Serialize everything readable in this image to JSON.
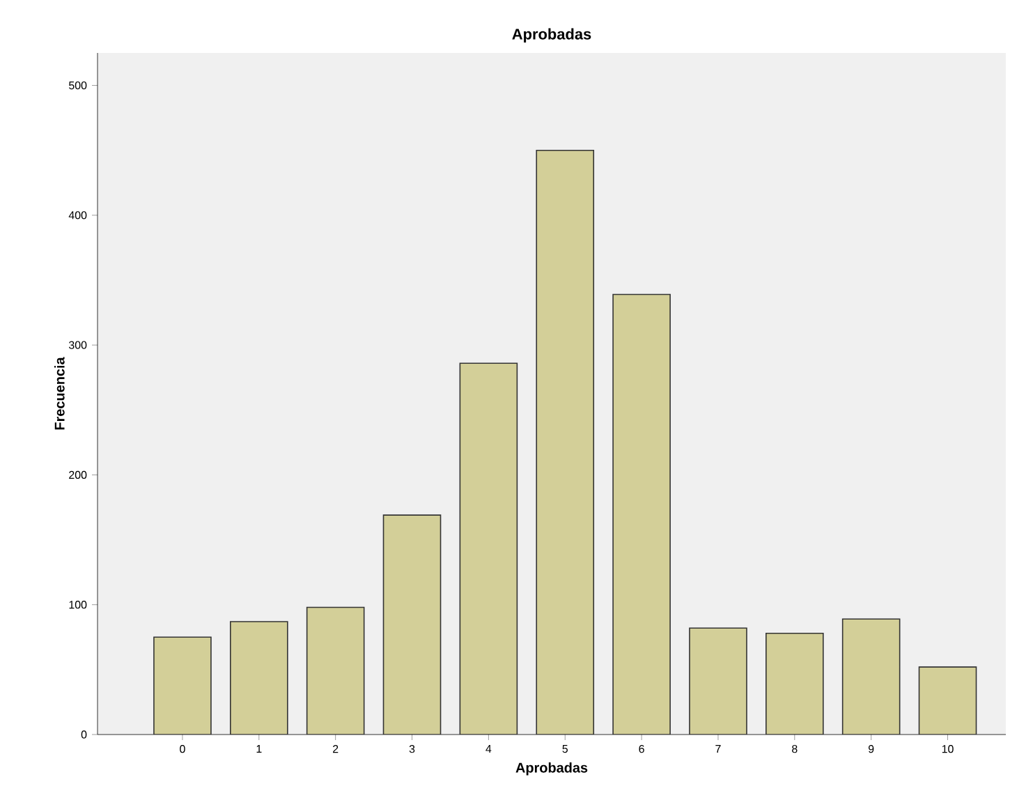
{
  "chart_data": {
    "type": "bar",
    "title": "Aprobadas",
    "xlabel": "Aprobadas",
    "ylabel": "Frecuencia",
    "categories": [
      "0",
      "1",
      "2",
      "3",
      "4",
      "5",
      "6",
      "7",
      "8",
      "9",
      "10"
    ],
    "values": [
      75,
      87,
      98,
      169,
      286,
      450,
      339,
      82,
      78,
      89,
      52
    ],
    "color": "#d3cf98",
    "ylim": [
      0,
      525
    ],
    "yticks": [
      0,
      100,
      200,
      300,
      400,
      500
    ]
  }
}
